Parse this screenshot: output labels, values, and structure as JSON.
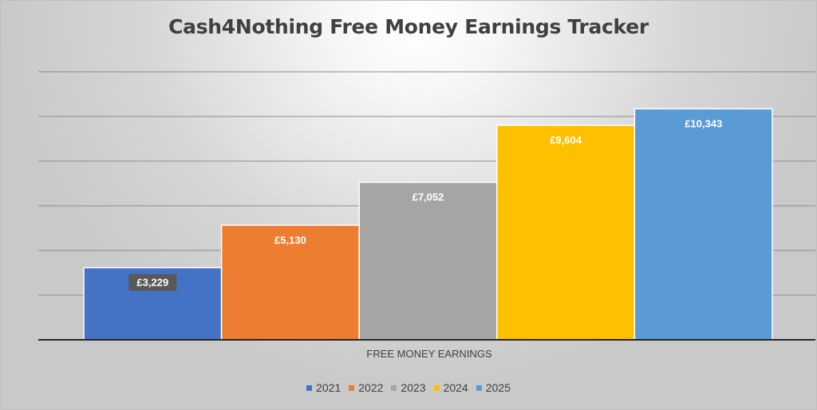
{
  "chart_data": {
    "type": "bar",
    "title": "Cash4Nothing Free Money Earnings Tracker",
    "categories": [
      "FREE MONEY EARNINGS"
    ],
    "xlabel": "",
    "ylabel": "",
    "ylim": [
      0,
      12000
    ],
    "grid": true,
    "legend_position": "bottom",
    "series": [
      {
        "name": "2021",
        "values": [
          3229
        ],
        "label": "£3,229",
        "color": "#4472C4"
      },
      {
        "name": "2022",
        "values": [
          5130
        ],
        "label": "£5,130",
        "color": "#ED7D31"
      },
      {
        "name": "2023",
        "values": [
          7052
        ],
        "label": "£7,052",
        "color": "#A5A5A5"
      },
      {
        "name": "2024",
        "values": [
          9604
        ],
        "label": "£9,604",
        "color": "#FFC000"
      },
      {
        "name": "2025",
        "values": [
          10343
        ],
        "label": "£10,343",
        "color": "#5B9BD5"
      }
    ]
  }
}
